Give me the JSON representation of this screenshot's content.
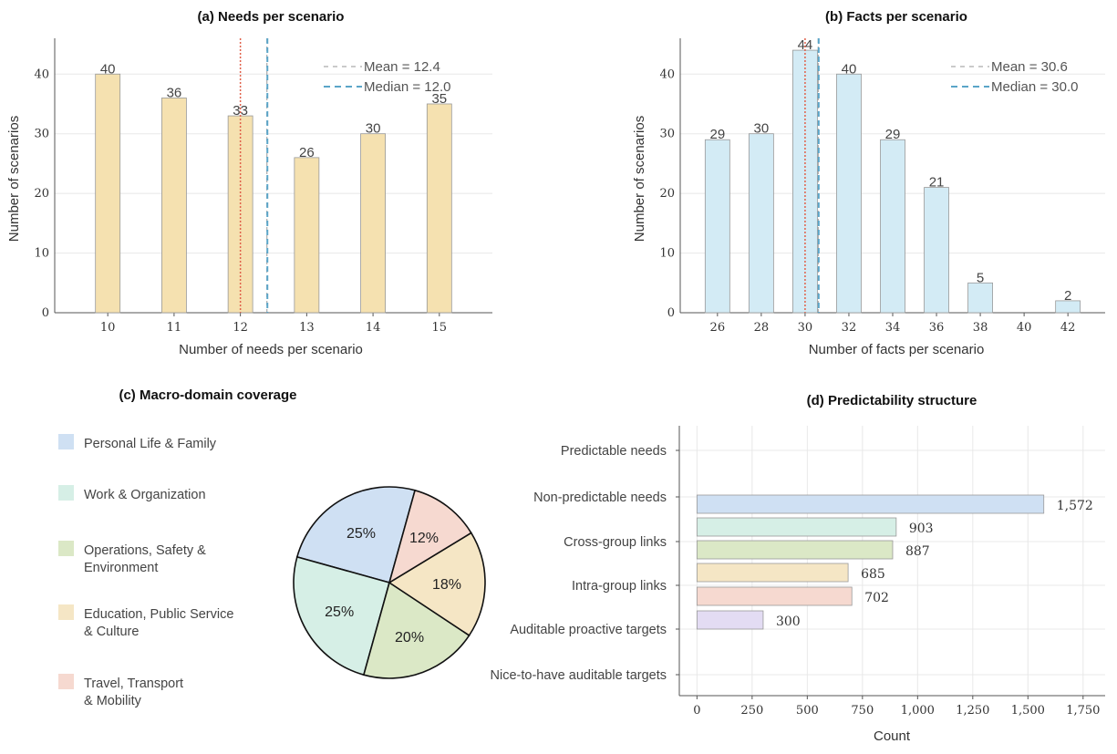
{
  "chart_data": [
    {
      "type": "bar",
      "title": "(a) Needs per scenario",
      "xlabel": "Number of needs per scenario",
      "ylabel": "Number of scenarios",
      "categories": [
        "10",
        "11",
        "12",
        "13",
        "14",
        "15"
      ],
      "x": [
        10,
        11,
        12,
        13,
        14,
        15
      ],
      "values": [
        40,
        36,
        33,
        26,
        30,
        35
      ],
      "data_labels": [
        "40",
        "36",
        "33",
        "26",
        "30",
        "35"
      ],
      "yticks": [
        0,
        10,
        20,
        30,
        40
      ],
      "xlim": [
        9.2,
        15.8
      ],
      "ylim": [
        0,
        46
      ],
      "bar_color": "#f5e1b0",
      "bar_edge": "#999999",
      "mean": 12.4,
      "median": 12.0,
      "mode_line": 12,
      "legend": [
        {
          "label": "Mean = 12.4",
          "style": "dashed-grey"
        },
        {
          "label": "Median = 12.0",
          "style": "dashed-blue"
        }
      ],
      "legend_position": "top-right",
      "grid": true
    },
    {
      "type": "bar",
      "title": "(b) Facts per scenario",
      "xlabel": "Number of facts per scenario",
      "ylabel": "Number of scenarios",
      "x": [
        26,
        28,
        30,
        32,
        34,
        36,
        38,
        40,
        42
      ],
      "values": [
        29,
        30,
        44,
        40,
        29,
        21,
        5,
        0,
        2
      ],
      "data_labels": [
        "29",
        "30",
        "44",
        "40",
        "29",
        "21",
        "5",
        "",
        "2"
      ],
      "xticks": [
        "26",
        "28",
        "30",
        "32",
        "34",
        "36",
        "38",
        "40",
        "42"
      ],
      "yticks": [
        0,
        10,
        20,
        30,
        40
      ],
      "xlim": [
        24.3,
        43.7
      ],
      "ylim": [
        0,
        46
      ],
      "bar_color": "#d3ebf5",
      "bar_edge": "#999999",
      "mean": 30.6,
      "median": 30.0,
      "mode_line": 30,
      "legend": [
        {
          "label": "Mean = 30.6",
          "style": "dashed-grey"
        },
        {
          "label": "Median = 30.0",
          "style": "dashed-blue"
        }
      ],
      "legend_position": "top-right",
      "grid": true
    },
    {
      "type": "pie",
      "title": "(c) Macro-domain coverage",
      "slices": [
        {
          "label": "Personal Life & Family",
          "value": 25,
          "text": "25%",
          "color": "#cfe0f3"
        },
        {
          "label": "Work & Organization",
          "value": 25,
          "text": "25%",
          "color": "#d6efe6"
        },
        {
          "label": "Operations, Safety & Environment",
          "value": 20,
          "text": "20%",
          "color": "#dbe8c6"
        },
        {
          "label": "Education, Public Service & Culture",
          "value": 18,
          "text": "18%",
          "color": "#f5e6c5"
        },
        {
          "label": "Travel, Transport & Mobility",
          "value": 12,
          "text": "12%",
          "color": "#f6d9d0"
        }
      ],
      "legend_lines": [
        [
          "Personal Life & Family"
        ],
        [
          "Work & Organization"
        ],
        [
          "Operations, Safety &",
          "Environment"
        ],
        [
          "Education, Public Service",
          "& Culture"
        ],
        [
          "Travel, Transport",
          "& Mobility"
        ]
      ],
      "legend_position": "left"
    },
    {
      "type": "bar",
      "orientation": "horizontal",
      "title": "(d) Predictability structure",
      "xlabel": "Count",
      "categories": [
        "Predictable needs",
        "Non-predictable needs",
        "Cross-group links",
        "Intra-group links",
        "Auditable proactive targets",
        "Nice-to-have auditable targets"
      ],
      "values": [
        1572,
        903,
        887,
        685,
        702,
        300
      ],
      "data_labels": [
        "1,572",
        "903",
        "887",
        "685",
        "702",
        "300"
      ],
      "colors": [
        "#cfe0f3",
        "#d6efe6",
        "#dbe8c6",
        "#f5e6c5",
        "#f6d9d0",
        "#e3dcf3"
      ],
      "xticks": [
        "0",
        "250",
        "500",
        "750",
        "1,000",
        "1,250",
        "1,500",
        "1,750"
      ],
      "xlim": [
        -80,
        1850
      ],
      "grid": true
    }
  ]
}
